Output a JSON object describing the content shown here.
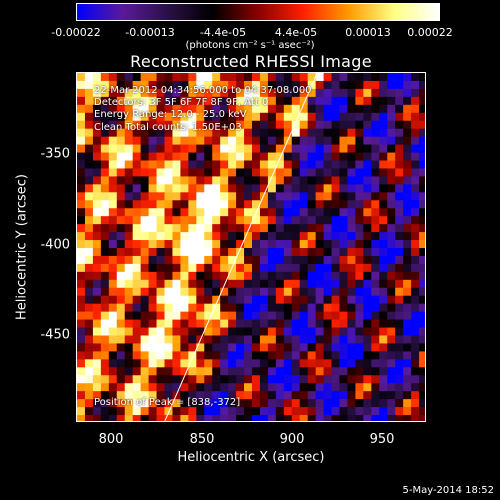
{
  "colorbar": {
    "ticks": [
      "-0.00022",
      "-0.00013",
      "-4.4e-05",
      "4.4e-05",
      "0.00013",
      "0.00022"
    ],
    "units": "(photons cm⁻² s⁻¹ asec⁻²)"
  },
  "title": "Reconstructed RHESSI Image",
  "info": {
    "line1": "22-Mar-2012 04:34:56.000 to 04:37:08.000",
    "line2": "Detectors: 3F 5F 6F 7F 8F 9F, Att 0",
    "line3": "Energy Range: 12.0 - 25.0 keV",
    "line4": "Clean     Total counts: 1.50E+03",
    "peak": "Position of Peak = [838,-372]"
  },
  "axes": {
    "xlabel": "Heliocentric X (arcsec)",
    "ylabel": "Heliocentric Y (arcsec)",
    "xticks": [
      "800",
      "850",
      "900",
      "950"
    ],
    "yticks": [
      "-350",
      "-400",
      "-450"
    ]
  },
  "datestamp": "5-May-2014 18:52",
  "colors": {
    "colormap": [
      "#0000ff",
      "#5a1a9a",
      "#2a1048",
      "#000000",
      "#8a0000",
      "#ff2000",
      "#ff9a00",
      "#ffff80",
      "#ffffff"
    ],
    "limb": "#ffffff"
  }
}
